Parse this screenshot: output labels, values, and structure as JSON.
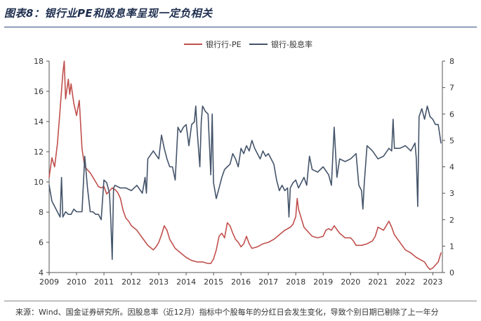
{
  "figure": {
    "title": "图表8：银行业PE和股息率呈现一定负相关",
    "footnote": "来源：Wind、国金证券研究所。因股息率（近12月）指标中个股每年的分红日会发生变化，导致个别日期已剔除了上一年分"
  },
  "chart_data": {
    "type": "line",
    "legend_position": "top-center",
    "grid": false,
    "x_ticks": [
      "2009",
      "2010",
      "2011",
      "2012",
      "2013",
      "2014",
      "2015",
      "2016",
      "2017",
      "2018",
      "2019",
      "2020",
      "2021",
      "2022",
      "2023"
    ],
    "xlim": [
      2009.0,
      2023.35
    ],
    "y_left": {
      "ylim": [
        4,
        18
      ],
      "ticks": [
        4,
        6,
        8,
        10,
        12,
        14,
        16,
        18
      ]
    },
    "y_right": {
      "ylim": [
        0,
        8
      ],
      "ticks": [
        0,
        1,
        2,
        3,
        4,
        5,
        6,
        7,
        8
      ]
    },
    "series": [
      {
        "name": "银行行-PE",
        "axis": "left",
        "color": "#c0504d",
        "x": [
          2009.0,
          2009.1,
          2009.2,
          2009.3,
          2009.4,
          2009.5,
          2009.55,
          2009.6,
          2009.7,
          2009.75,
          2009.8,
          2009.9,
          2010.0,
          2010.1,
          2010.2,
          2010.3,
          2010.4,
          2010.5,
          2010.6,
          2010.7,
          2010.8,
          2010.9,
          2011.0,
          2011.1,
          2011.2,
          2011.3,
          2011.4,
          2011.5,
          2011.6,
          2011.7,
          2011.8,
          2011.9,
          2012.0,
          2012.2,
          2012.4,
          2012.6,
          2012.8,
          2012.9,
          2013.0,
          2013.1,
          2013.2,
          2013.3,
          2013.4,
          2013.5,
          2013.6,
          2013.8,
          2014.0,
          2014.2,
          2014.4,
          2014.6,
          2014.8,
          2014.9,
          2015.0,
          2015.1,
          2015.2,
          2015.3,
          2015.4,
          2015.5,
          2015.6,
          2015.7,
          2015.8,
          2015.9,
          2016.0,
          2016.1,
          2016.2,
          2016.3,
          2016.4,
          2016.6,
          2016.8,
          2017.0,
          2017.2,
          2017.4,
          2017.6,
          2017.8,
          2017.9,
          2018.0,
          2018.05,
          2018.1,
          2018.2,
          2018.3,
          2018.4,
          2018.5,
          2018.6,
          2018.8,
          2019.0,
          2019.1,
          2019.2,
          2019.3,
          2019.4,
          2019.6,
          2019.8,
          2020.0,
          2020.1,
          2020.2,
          2020.4,
          2020.6,
          2020.8,
          2020.9,
          2021.0,
          2021.1,
          2021.2,
          2021.3,
          2021.4,
          2021.5,
          2021.6,
          2021.8,
          2022.0,
          2022.2,
          2022.4,
          2022.6,
          2022.7,
          2022.8,
          2022.9,
          2023.0,
          2023.1,
          2023.2,
          2023.3
        ],
        "y": [
          10.3,
          11.6,
          11.0,
          12.5,
          14.8,
          17.2,
          18.0,
          15.5,
          16.8,
          15.8,
          16.5,
          15.2,
          14.4,
          15.4,
          12.2,
          11.0,
          10.8,
          10.6,
          10.3,
          10.0,
          9.7,
          9.6,
          9.7,
          9.2,
          9.4,
          9.6,
          9.5,
          9.3,
          8.9,
          8.1,
          7.6,
          7.4,
          7.1,
          6.8,
          6.3,
          5.8,
          5.5,
          5.7,
          6.0,
          6.5,
          7.1,
          6.8,
          6.2,
          5.9,
          5.6,
          5.3,
          5.0,
          4.8,
          4.7,
          4.7,
          4.6,
          4.6,
          4.9,
          5.5,
          6.4,
          6.6,
          6.3,
          7.3,
          7.1,
          6.6,
          6.2,
          6.0,
          5.7,
          5.9,
          6.4,
          5.9,
          5.6,
          5.7,
          5.9,
          6.0,
          6.2,
          6.5,
          6.8,
          7.0,
          7.2,
          7.7,
          8.9,
          8.2,
          7.6,
          7.0,
          6.8,
          6.6,
          6.4,
          6.3,
          6.4,
          6.8,
          6.9,
          6.8,
          7.1,
          6.6,
          6.3,
          6.3,
          6.1,
          5.8,
          5.8,
          5.9,
          6.1,
          6.4,
          7.0,
          6.9,
          6.8,
          7.1,
          7.4,
          7.0,
          6.5,
          6.0,
          5.5,
          5.3,
          5.0,
          4.8,
          4.7,
          4.4,
          4.2,
          4.3,
          4.5,
          4.7,
          5.3
        ]
      },
      {
        "name": "银行-股息率",
        "axis": "right",
        "color": "#44546a",
        "x": [
          2009.0,
          2009.1,
          2009.2,
          2009.3,
          2009.4,
          2009.45,
          2009.5,
          2009.6,
          2009.7,
          2009.8,
          2009.9,
          2010.0,
          2010.1,
          2010.2,
          2010.3,
          2010.4,
          2010.5,
          2010.6,
          2010.7,
          2010.8,
          2010.9,
          2011.0,
          2011.1,
          2011.2,
          2011.25,
          2011.3,
          2011.35,
          2011.4,
          2011.6,
          2011.8,
          2012.0,
          2012.2,
          2012.4,
          2012.5,
          2012.55,
          2012.6,
          2012.8,
          2013.0,
          2013.1,
          2013.2,
          2013.3,
          2013.4,
          2013.5,
          2013.6,
          2013.7,
          2013.8,
          2013.9,
          2014.0,
          2014.1,
          2014.2,
          2014.3,
          2014.35,
          2014.4,
          2014.5,
          2014.55,
          2014.6,
          2014.7,
          2014.8,
          2014.9,
          2014.95,
          2015.0,
          2015.1,
          2015.2,
          2015.3,
          2015.4,
          2015.5,
          2015.6,
          2015.7,
          2015.8,
          2015.9,
          2016.0,
          2016.1,
          2016.2,
          2016.3,
          2016.4,
          2016.5,
          2016.6,
          2016.7,
          2016.8,
          2016.9,
          2017.0,
          2017.1,
          2017.2,
          2017.3,
          2017.4,
          2017.5,
          2017.6,
          2017.7,
          2017.75,
          2017.8,
          2017.9,
          2018.0,
          2018.1,
          2018.2,
          2018.3,
          2018.4,
          2018.5,
          2018.6,
          2018.8,
          2019.0,
          2019.2,
          2019.3,
          2019.4,
          2019.5,
          2019.6,
          2019.8,
          2020.0,
          2020.2,
          2020.3,
          2020.4,
          2020.45,
          2020.5,
          2020.6,
          2020.8,
          2021.0,
          2021.2,
          2021.4,
          2021.5,
          2021.55,
          2021.6,
          2021.8,
          2022.0,
          2022.2,
          2022.35,
          2022.4,
          2022.45,
          2022.5,
          2022.6,
          2022.7,
          2022.8,
          2022.9,
          2023.0,
          2023.1,
          2023.2,
          2023.3
        ],
        "y": [
          3.3,
          2.7,
          2.5,
          2.3,
          2.1,
          3.6,
          2.1,
          2.3,
          2.2,
          2.2,
          2.4,
          2.3,
          2.3,
          2.3,
          4.4,
          3.2,
          2.3,
          2.3,
          2.2,
          2.2,
          2.0,
          3.5,
          3.4,
          3.0,
          2.0,
          0.5,
          3.2,
          3.3,
          3.2,
          3.2,
          3.1,
          3.3,
          3.0,
          3.6,
          3.0,
          4.3,
          4.6,
          4.3,
          5.2,
          4.7,
          4.3,
          4.0,
          4.0,
          3.5,
          5.5,
          5.3,
          5.5,
          5.6,
          4.8,
          5.6,
          5.7,
          6.3,
          5.4,
          4.0,
          5.7,
          6.3,
          6.1,
          6.0,
          3.7,
          6.0,
          3.4,
          2.8,
          3.2,
          3.6,
          3.9,
          4.0,
          4.1,
          4.5,
          4.3,
          4.0,
          4.7,
          4.5,
          4.8,
          4.6,
          5.0,
          4.7,
          4.5,
          4.3,
          4.6,
          4.4,
          4.5,
          4.3,
          4.1,
          3.5,
          3.1,
          3.3,
          3.1,
          3.2,
          2.1,
          3.2,
          3.4,
          3.5,
          3.2,
          3.4,
          3.6,
          3.3,
          4.4,
          3.9,
          3.8,
          4.0,
          3.7,
          3.3,
          5.5,
          3.6,
          4.3,
          4.2,
          4.3,
          4.5,
          3.3,
          3.1,
          2.4,
          3.4,
          4.8,
          4.6,
          4.3,
          4.4,
          4.7,
          4.6,
          5.8,
          4.7,
          4.7,
          4.8,
          4.6,
          4.9,
          4.3,
          2.5,
          5.9,
          6.2,
          5.8,
          6.3,
          5.9,
          5.8,
          5.6,
          5.6,
          4.9
        ]
      }
    ]
  }
}
